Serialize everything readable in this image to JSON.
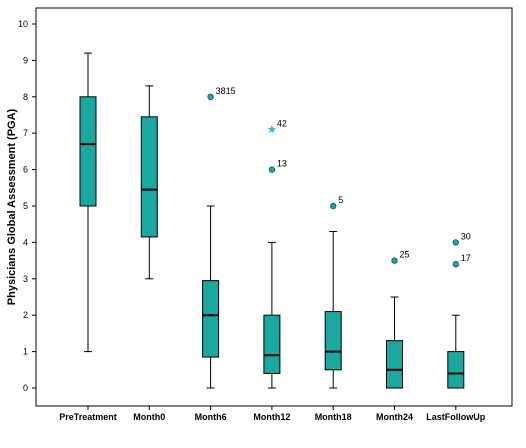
{
  "chart_data": {
    "type": "boxplot",
    "title": "",
    "xlabel": "",
    "ylabel": "Physicians Global Assessment (PGA)",
    "ylim": [
      0,
      10
    ],
    "yticks": [
      "0",
      "1",
      "2",
      "3",
      "4",
      "5",
      "6",
      "7",
      "8",
      "9",
      "10"
    ],
    "grid": false,
    "box_color": "#1aa8a0",
    "outlier_color": "#1aa8a0",
    "extreme_color": "#3cc0c0",
    "categories": [
      "PreTreatment",
      "Month0",
      "Month6",
      "Month12",
      "Month18",
      "Month24",
      "LastFollowUp"
    ],
    "boxes": [
      {
        "category": "PreTreatment",
        "min": 1.0,
        "q1": 5.0,
        "median": 6.7,
        "q3": 8.0,
        "max": 9.2
      },
      {
        "category": "Month0",
        "min": 3.0,
        "q1": 4.15,
        "median": 5.45,
        "q3": 7.45,
        "max": 8.3
      },
      {
        "category": "Month6",
        "min": 0.0,
        "q1": 0.85,
        "median": 2.0,
        "q3": 2.95,
        "max": 5.0
      },
      {
        "category": "Month12",
        "min": 0.0,
        "q1": 0.4,
        "median": 0.9,
        "q3": 2.0,
        "max": 4.0
      },
      {
        "category": "Month18",
        "min": 0.0,
        "q1": 0.5,
        "median": 1.0,
        "q3": 2.1,
        "max": 4.3
      },
      {
        "category": "Month24",
        "min": 0.0,
        "q1": 0.0,
        "median": 0.5,
        "q3": 1.3,
        "max": 2.5
      },
      {
        "category": "LastFollowUp",
        "min": 0.0,
        "q1": 0.0,
        "median": 0.4,
        "q3": 1.0,
        "max": 2.0
      }
    ],
    "outliers": [
      {
        "category": "Month6",
        "value": 8.0,
        "label": "3815",
        "kind": "circle"
      },
      {
        "category": "Month12",
        "value": 7.1,
        "label": "42",
        "kind": "star"
      },
      {
        "category": "Month12",
        "value": 6.0,
        "label": "13",
        "kind": "circle"
      },
      {
        "category": "Month18",
        "value": 5.0,
        "label": "5",
        "kind": "circle"
      },
      {
        "category": "Month24",
        "value": 3.5,
        "label": "25",
        "kind": "circle"
      },
      {
        "category": "LastFollowUp",
        "value": 4.0,
        "label": "30",
        "kind": "circle"
      },
      {
        "category": "LastFollowUp",
        "value": 3.4,
        "label": "17",
        "kind": "circle"
      }
    ]
  }
}
